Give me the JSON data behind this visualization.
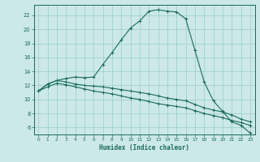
{
  "xlabel": "Humidex (Indice chaleur)",
  "bg_color": "#cce8e8",
  "grid_color": "#99cccc",
  "line_color": "#1a6b5a",
  "xlim": [
    -0.5,
    23.5
  ],
  "ylim": [
    5,
    23.5
  ],
  "xticks": [
    0,
    1,
    2,
    3,
    4,
    5,
    6,
    7,
    8,
    9,
    10,
    11,
    12,
    13,
    14,
    15,
    16,
    17,
    18,
    19,
    20,
    21,
    22,
    23
  ],
  "yticks": [
    6,
    8,
    10,
    12,
    14,
    16,
    18,
    20,
    22
  ],
  "curve1_x": [
    0,
    1,
    2,
    3,
    4,
    5,
    6,
    7,
    8,
    9,
    10,
    11,
    12,
    13,
    14,
    15,
    16,
    17,
    18,
    19,
    20,
    21,
    22,
    23
  ],
  "curve1_y": [
    11.2,
    12.2,
    12.7,
    13.0,
    13.2,
    13.1,
    13.2,
    15.0,
    16.7,
    18.5,
    20.2,
    21.2,
    22.6,
    22.8,
    22.6,
    22.5,
    21.5,
    17.0,
    12.5,
    9.8,
    8.3,
    6.8,
    6.3,
    5.2
  ],
  "curve2_x": [
    0,
    1,
    2,
    3,
    4,
    5,
    6,
    7,
    8,
    9,
    10,
    11,
    12,
    13,
    14,
    15,
    16,
    17,
    18,
    19,
    20,
    21,
    22,
    23
  ],
  "curve2_y": [
    11.2,
    12.2,
    12.7,
    12.5,
    12.2,
    12.0,
    11.9,
    11.8,
    11.6,
    11.4,
    11.2,
    11.0,
    10.8,
    10.5,
    10.2,
    10.0,
    9.8,
    9.3,
    8.8,
    8.5,
    8.2,
    7.8,
    7.2,
    6.8
  ],
  "curve3_x": [
    0,
    1,
    2,
    3,
    4,
    5,
    6,
    7,
    8,
    9,
    10,
    11,
    12,
    13,
    14,
    15,
    16,
    17,
    18,
    19,
    20,
    21,
    22,
    23
  ],
  "curve3_y": [
    11.2,
    11.8,
    12.3,
    12.1,
    11.8,
    11.5,
    11.2,
    11.0,
    10.8,
    10.5,
    10.2,
    10.0,
    9.7,
    9.4,
    9.2,
    9.0,
    8.8,
    8.4,
    8.0,
    7.7,
    7.4,
    7.0,
    6.7,
    6.3
  ]
}
